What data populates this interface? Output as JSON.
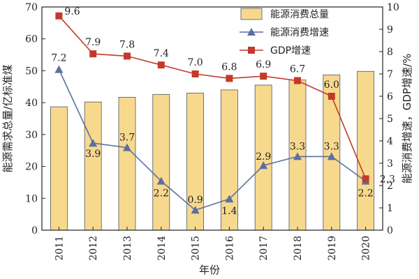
{
  "chart_data": {
    "type": "bar+line",
    "categories": [
      "2011",
      "2012",
      "2013",
      "2014",
      "2015",
      "2016",
      "2017",
      "2018",
      "2019",
      "2020"
    ],
    "xlabel": "年份",
    "ylabel_left": "能源需求总量/亿标准煤",
    "ylabel_right": "能源消费增速，GDP增速/%",
    "ylim_left": [
      0,
      70
    ],
    "ylim_right": [
      0,
      10
    ],
    "yticks_left": [
      "0",
      "10",
      "20",
      "30",
      "40",
      "50",
      "60",
      "70"
    ],
    "yticks_right": [
      "0",
      "1",
      "2",
      "3",
      "4",
      "5",
      "6",
      "7",
      "8",
      "9",
      "10"
    ],
    "legend_position": "top-right",
    "series": [
      {
        "name": "能源消费总量",
        "type": "bar",
        "axis": "left",
        "color": "#F7D98E",
        "values": [
          38.7,
          40.2,
          41.7,
          42.6,
          43.0,
          44.0,
          45.5,
          47.1,
          48.7,
          49.8
        ]
      },
      {
        "name": "能源消费增速",
        "type": "line",
        "axis": "right",
        "color": "#5B6FA0",
        "marker": "triangle",
        "values": [
          7.2,
          3.9,
          3.7,
          2.2,
          0.9,
          1.4,
          2.9,
          3.3,
          3.3,
          2.2
        ],
        "labels": [
          "7.2",
          "3.9",
          "3.7",
          "2.2",
          "0.9",
          "1.4",
          "2.9",
          "3.3",
          "3.3",
          "2.2"
        ]
      },
      {
        "name": "GDP增速",
        "type": "line",
        "axis": "right",
        "color": "#C23A2C",
        "marker": "square",
        "values": [
          9.6,
          7.9,
          7.8,
          7.4,
          7.0,
          6.8,
          6.9,
          6.7,
          6.0,
          2.3
        ],
        "labels": [
          "9.6",
          "7.9",
          "7.8",
          "7.4",
          "7.0",
          "6.8",
          "6.9",
          "6.7",
          "6.0",
          "2.3"
        ]
      }
    ]
  }
}
